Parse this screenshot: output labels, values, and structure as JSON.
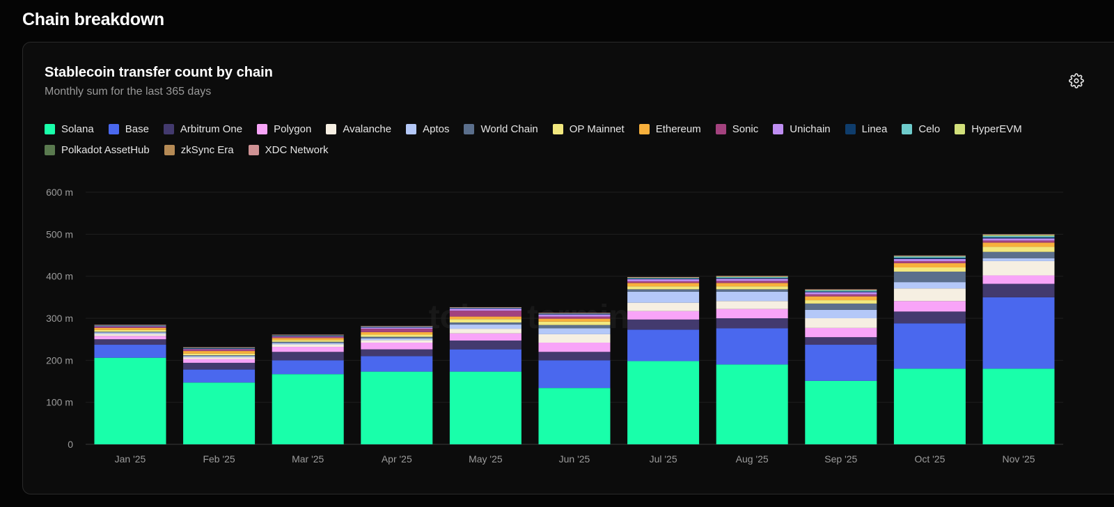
{
  "page": {
    "section_title": "Chain breakdown"
  },
  "card": {
    "title": "Stablecoin transfer count by chain",
    "subtitle": "Monthly sum for the last 365 days"
  },
  "icons": {
    "settings": "gear-icon"
  },
  "watermark": "token terminal_",
  "colors": {
    "Solana": "#19ffaa",
    "Base": "#4a68ee",
    "Arbitrum One": "#433a6e",
    "Polygon": "#f8a4f8",
    "Avalanche": "#f6efe2",
    "Aptos": "#b4c8f8",
    "World Chain": "#5b6f8c",
    "OP Mainnet": "#f2e87e",
    "Ethereum": "#f8b03c",
    "Sonic": "#a3427e",
    "Unichain": "#bf8ef2",
    "Linea": "#0f3d6c",
    "Celo": "#6ecbcb",
    "HyperEVM": "#d2e07a",
    "Polkadot AssetHub": "#5a7a4f",
    "zkSync Era": "#b58a55",
    "XDC Network": "#cf9294"
  },
  "chart_data": {
    "type": "bar",
    "stacked": true,
    "title": "Stablecoin transfer count by chain",
    "subtitle": "Monthly sum for the last 365 days",
    "xlabel": "",
    "ylabel": "",
    "ylim": [
      0,
      600
    ],
    "yticks": [
      0,
      100,
      200,
      300,
      400,
      500,
      600
    ],
    "ytick_labels": [
      "0",
      "100 m",
      "200 m",
      "300 m",
      "400 m",
      "500 m",
      "600 m"
    ],
    "grid": true,
    "legend_position": "top",
    "categories": [
      "Jan '25",
      "Feb '25",
      "Mar '25",
      "Apr '25",
      "May '25",
      "Jun '25",
      "Jul '25",
      "Aug '25",
      "Sep '25",
      "Oct '25",
      "Nov '25"
    ],
    "series": [
      {
        "name": "Solana",
        "values": [
          206,
          147,
          167,
          173,
          173,
          134,
          198,
          190,
          151,
          180,
          180
        ]
      },
      {
        "name": "Base",
        "values": [
          31,
          31,
          33,
          37,
          53,
          66,
          75,
          86,
          86,
          108,
          170
        ]
      },
      {
        "name": "Arbitrum One",
        "values": [
          13,
          16,
          20,
          16,
          21,
          20,
          24,
          24,
          18,
          28,
          32
        ]
      },
      {
        "name": "Polygon",
        "values": [
          8,
          9,
          12,
          16,
          17,
          22,
          20,
          22,
          22,
          25,
          20
        ]
      },
      {
        "name": "Avalanche",
        "values": [
          5,
          4,
          6,
          6,
          11,
          20,
          20,
          19,
          23,
          30,
          34
        ]
      },
      {
        "name": "Aptos",
        "values": [
          3,
          3,
          3,
          4,
          10,
          14,
          26,
          22,
          20,
          15,
          7
        ]
      },
      {
        "name": "World Chain",
        "values": [
          2,
          2,
          3,
          4,
          5,
          8,
          6,
          6,
          15,
          25,
          15
        ]
      },
      {
        "name": "OP Mainnet",
        "values": [
          4,
          4,
          4,
          5,
          8,
          8,
          7,
          7,
          8,
          10,
          12
        ]
      },
      {
        "name": "Ethereum",
        "values": [
          5,
          6,
          5,
          6,
          6,
          7,
          8,
          8,
          9,
          10,
          10
        ]
      },
      {
        "name": "Sonic",
        "values": [
          3,
          4,
          3,
          8,
          14,
          5,
          4,
          5,
          5,
          5,
          5
        ]
      },
      {
        "name": "Unichain",
        "values": [
          1,
          1,
          1,
          3,
          5,
          5,
          5,
          5,
          5,
          5,
          5
        ]
      },
      {
        "name": "Linea",
        "values": [
          2,
          2,
          2,
          2,
          2,
          2,
          2,
          2,
          2,
          3,
          3
        ]
      },
      {
        "name": "Celo",
        "values": [
          0.5,
          1,
          1,
          0.5,
          0.5,
          1,
          1.5,
          2,
          2.5,
          3,
          3
        ]
      },
      {
        "name": "HyperEVM",
        "values": [
          0,
          0,
          0,
          0,
          0,
          0,
          0.5,
          1,
          1,
          1,
          2
        ]
      },
      {
        "name": "Polkadot AssetHub",
        "values": [
          0,
          0,
          0,
          0,
          0,
          0,
          0,
          1,
          0.5,
          0.5,
          1
        ]
      },
      {
        "name": "zkSync Era",
        "values": [
          0.5,
          0.5,
          0.5,
          0.5,
          0.5,
          0.5,
          0.5,
          0.5,
          0.5,
          0.5,
          0.5
        ]
      },
      {
        "name": "XDC Network",
        "values": [
          0.5,
          0.5,
          0.5,
          0.5,
          0.5,
          0.5,
          0.5,
          0.5,
          0.5,
          0.5,
          0.5
        ]
      }
    ]
  }
}
